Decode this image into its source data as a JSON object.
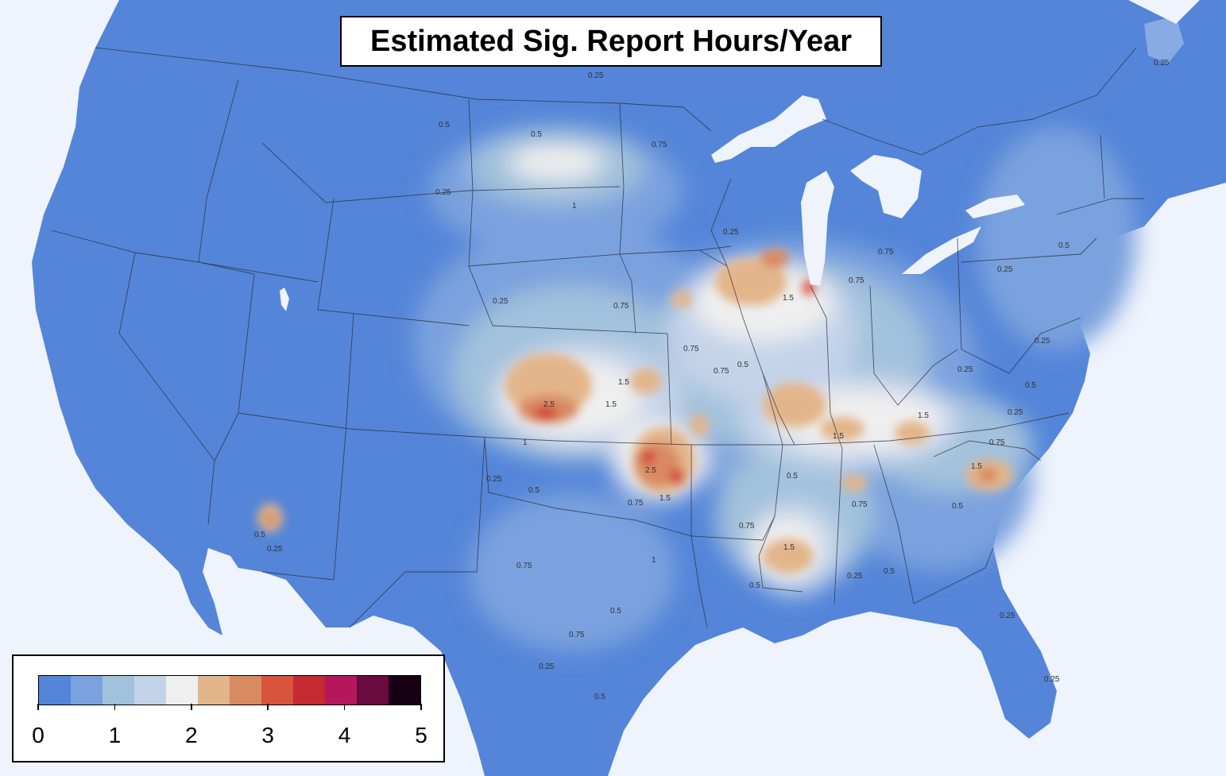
{
  "map": {
    "title": "Estimated Sig. Report Hours/Year",
    "colors": {
      "land": "#5485d8",
      "water": "#eef3fc",
      "border": "#2b2b3a"
    },
    "legend": {
      "bins": [
        "#5485d8",
        "#7aa2de",
        "#a2c1dc",
        "#c3d3e9",
        "#efefef",
        "#e3b58a",
        "#d98a63",
        "#d8543f",
        "#c52a31",
        "#b5185a",
        "#6a0a3e",
        "#170014"
      ],
      "tick_labels": [
        "0",
        "1",
        "2",
        "3",
        "4",
        "5"
      ],
      "tick_values": [
        0,
        1,
        2,
        3,
        4,
        5
      ],
      "range": [
        0,
        5
      ]
    },
    "contour_labels": [
      "0.25",
      "0.5",
      "0.75",
      "1",
      "1.5",
      "2.5"
    ]
  }
}
